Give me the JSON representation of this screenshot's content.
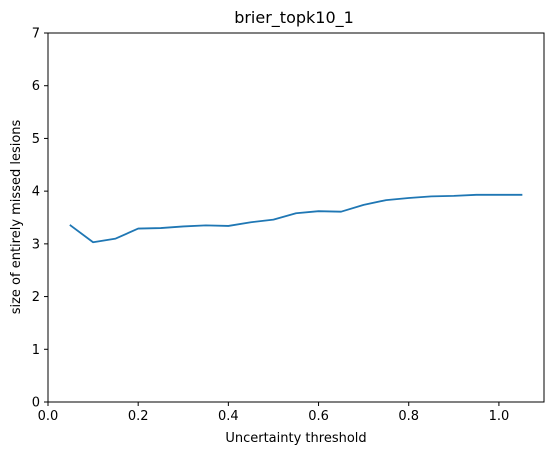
{
  "chart_data": {
    "type": "line",
    "title": "brier_topk10_1",
    "xlabel": "Uncertainty threshold",
    "ylabel": "size of entirely missed lesions",
    "xlim": [
      0.0,
      1.1
    ],
    "ylim": [
      0,
      7
    ],
    "xticks": [
      "0.0",
      "0.2",
      "0.4",
      "0.6",
      "0.8",
      "1.0"
    ],
    "yticks": [
      "0",
      "1",
      "2",
      "3",
      "4",
      "5",
      "6",
      "7"
    ],
    "grid": false,
    "line_color": "#1f77b4",
    "series": [
      {
        "x": [
          0.05,
          0.1,
          0.15,
          0.2,
          0.25,
          0.3,
          0.35,
          0.4,
          0.45,
          0.5,
          0.55,
          0.6,
          0.65,
          0.7,
          0.75,
          0.8,
          0.85,
          0.9,
          0.95,
          1.0,
          1.05
        ],
        "y": [
          3.35,
          3.03,
          3.1,
          3.29,
          3.3,
          3.33,
          3.35,
          3.34,
          3.41,
          3.46,
          3.58,
          3.62,
          3.61,
          3.74,
          3.83,
          3.87,
          3.9,
          3.91,
          3.93,
          3.93,
          3.93
        ]
      }
    ]
  }
}
